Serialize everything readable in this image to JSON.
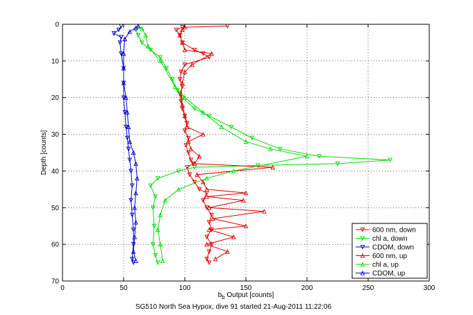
{
  "chart_data": {
    "type": "line",
    "xlabel": "b",
    "xlabel_subscript": "b",
    "xlabel_suffix": " Output [counts]",
    "ylabel": "Depth [counts]",
    "caption": "SG510 North Sea Hypox, dive 91 started 21-Aug-2011 11:22:06",
    "xlim": [
      0,
      300
    ],
    "ylim": [
      0,
      70
    ],
    "y_reversed": true,
    "grid": true,
    "legend_position": "bottom-right",
    "xticks": [
      "0",
      "50",
      "100",
      "150",
      "200",
      "250",
      "300"
    ],
    "yticks": [
      "0",
      "10",
      "20",
      "30",
      "40",
      "50",
      "60",
      "70"
    ],
    "series": [
      {
        "name": "600 nm, down",
        "color": "#dd0000",
        "marker": "down",
        "points": [
          [
            135,
            0.5
          ],
          [
            98,
            0.8
          ],
          [
            93,
            1.5
          ],
          [
            96,
            3
          ],
          [
            98,
            5
          ],
          [
            108,
            7
          ],
          [
            115,
            8
          ],
          [
            120,
            9
          ],
          [
            100,
            11
          ],
          [
            97,
            13
          ],
          [
            96,
            15
          ],
          [
            98,
            17
          ],
          [
            96,
            19
          ],
          [
            97,
            21
          ],
          [
            98,
            23
          ],
          [
            100,
            25
          ],
          [
            102,
            27
          ],
          [
            100,
            29
          ],
          [
            103,
            31
          ],
          [
            101,
            33
          ],
          [
            103,
            35
          ],
          [
            105,
            37
          ],
          [
            107,
            38
          ],
          [
            102,
            39
          ],
          [
            104,
            41
          ],
          [
            108,
            43
          ],
          [
            112,
            45
          ],
          [
            118,
            46
          ],
          [
            115,
            48
          ],
          [
            118,
            50
          ],
          [
            122,
            52
          ],
          [
            120,
            54
          ],
          [
            122,
            56
          ],
          [
            118,
            58
          ],
          [
            122,
            60
          ],
          [
            120,
            62
          ],
          [
            118,
            64
          ],
          [
            120,
            65
          ]
        ]
      },
      {
        "name": "chl a, down",
        "color": "#00dd00",
        "marker": "down",
        "points": [
          [
            60,
            1.5
          ],
          [
            62,
            3
          ],
          [
            65,
            5
          ],
          [
            72,
            7
          ],
          [
            80,
            9
          ],
          [
            85,
            12
          ],
          [
            90,
            15
          ],
          [
            94,
            18
          ],
          [
            98,
            20
          ],
          [
            108,
            23
          ],
          [
            120,
            25
          ],
          [
            138,
            28
          ],
          [
            155,
            31
          ],
          [
            178,
            34
          ],
          [
            210,
            36
          ],
          [
            268,
            37
          ],
          [
            225,
            38
          ],
          [
            160,
            38.5
          ],
          [
            108,
            39
          ],
          [
            95,
            40
          ],
          [
            78,
            42
          ],
          [
            72,
            44
          ],
          [
            76,
            47
          ],
          [
            74,
            50
          ],
          [
            75,
            55
          ],
          [
            74,
            60
          ],
          [
            76,
            63
          ],
          [
            78,
            65
          ]
        ]
      },
      {
        "name": "CDOM, down",
        "color": "#0000cc",
        "marker": "down",
        "points": [
          [
            48,
            0.5
          ],
          [
            46,
            1.5
          ],
          [
            42,
            2.5
          ],
          [
            48,
            3.5
          ],
          [
            47,
            5
          ],
          [
            48,
            8
          ],
          [
            50,
            12
          ],
          [
            50,
            16
          ],
          [
            50,
            20
          ],
          [
            51,
            24
          ],
          [
            52,
            28
          ],
          [
            53,
            31
          ],
          [
            54,
            34
          ],
          [
            55,
            37
          ],
          [
            56,
            40
          ],
          [
            57,
            44
          ],
          [
            56,
            48
          ],
          [
            57,
            52
          ],
          [
            58,
            56
          ],
          [
            58,
            60
          ],
          [
            57,
            64
          ],
          [
            58,
            65
          ]
        ]
      },
      {
        "name": "600 nm, up",
        "color": "#dd0000",
        "marker": "up",
        "points": [
          [
            125,
            64
          ],
          [
            135,
            62
          ],
          [
            118,
            60
          ],
          [
            140,
            58
          ],
          [
            120,
            56
          ],
          [
            150,
            55
          ],
          [
            123,
            53
          ],
          [
            165,
            51
          ],
          [
            120,
            50
          ],
          [
            148,
            48
          ],
          [
            118,
            47
          ],
          [
            150,
            46
          ],
          [
            118,
            45
          ],
          [
            115,
            43
          ],
          [
            110,
            41
          ],
          [
            172,
            39
          ],
          [
            108,
            38
          ],
          [
            112,
            36
          ],
          [
            105,
            34
          ],
          [
            103,
            32
          ],
          [
            115,
            30
          ],
          [
            102,
            28
          ],
          [
            100,
            25
          ],
          [
            98,
            22
          ],
          [
            97,
            19
          ],
          [
            98,
            16
          ],
          [
            100,
            13
          ],
          [
            106,
            11
          ],
          [
            122,
            8
          ],
          [
            100,
            7
          ],
          [
            98,
            5
          ],
          [
            96,
            3
          ],
          [
            98,
            1.5
          ],
          [
            100,
            0.8
          ]
        ]
      },
      {
        "name": "chl a, up",
        "color": "#00dd00",
        "marker": "up",
        "points": [
          [
            82,
            64.5
          ],
          [
            80,
            60
          ],
          [
            78,
            56
          ],
          [
            80,
            52
          ],
          [
            84,
            48
          ],
          [
            95,
            45
          ],
          [
            118,
            42
          ],
          [
            140,
            40
          ],
          [
            200,
            36
          ],
          [
            170,
            34
          ],
          [
            150,
            32
          ],
          [
            130,
            28
          ],
          [
            115,
            24
          ],
          [
            100,
            20
          ],
          [
            92,
            17
          ],
          [
            80,
            10
          ],
          [
            70,
            6
          ],
          [
            68,
            3
          ],
          [
            65,
            1.2
          ],
          [
            62,
            0.5
          ]
        ]
      },
      {
        "name": "CDOM, up",
        "color": "#0000cc",
        "marker": "up",
        "points": [
          [
            60,
            64.5
          ],
          [
            58,
            62
          ],
          [
            59,
            58
          ],
          [
            60,
            54
          ],
          [
            59,
            50
          ],
          [
            60,
            46
          ],
          [
            61,
            42
          ],
          [
            60,
            38
          ],
          [
            58,
            35
          ],
          [
            55,
            32
          ],
          [
            54,
            28
          ],
          [
            53,
            24
          ],
          [
            52,
            20
          ],
          [
            50,
            16
          ],
          [
            50,
            12
          ],
          [
            50,
            8
          ],
          [
            51,
            4
          ],
          [
            55,
            2
          ],
          [
            60,
            1
          ],
          [
            62,
            0.5
          ]
        ]
      }
    ]
  }
}
